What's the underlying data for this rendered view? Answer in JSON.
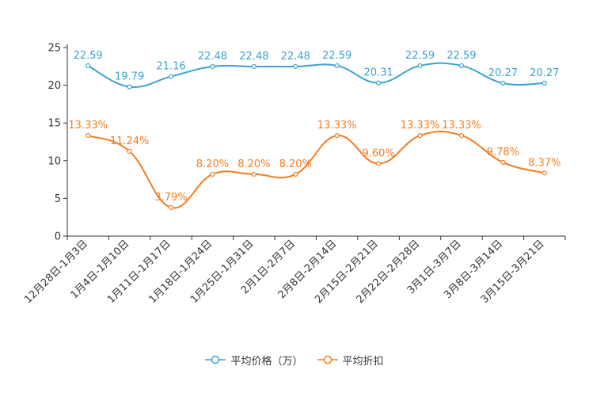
{
  "chart_data": {
    "type": "line",
    "categories": [
      "12月28日-1月3日",
      "1月4日-1月10日",
      "1月11日-1月17日",
      "1月18日-1月24日",
      "1月25日-1月31日",
      "2月1日-2月7日",
      "2月8日-2月14日",
      "2月15日-2月21日",
      "2月22日-2月28日",
      "3月1日-3月7日",
      "3月8日-3月14日",
      "3月15日-3月21日"
    ],
    "ylim": [
      0,
      25
    ],
    "yticks": [
      0,
      5,
      10,
      15,
      20,
      25
    ],
    "series": [
      {
        "name": "平均价格（万）",
        "color": "#3ba2d1",
        "values": [
          22.59,
          19.79,
          21.16,
          22.48,
          22.48,
          22.48,
          22.59,
          20.31,
          22.59,
          22.59,
          20.27,
          20.27
        ],
        "labels": [
          "22.59",
          "19.79",
          "21.16",
          "22.48",
          "22.48",
          "22.48",
          "22.59",
          "20.31",
          "22.59",
          "22.59",
          "20.27",
          "20.27"
        ]
      },
      {
        "name": "平均折扣",
        "color": "#f57c1f",
        "values": [
          13.33,
          11.24,
          3.79,
          8.2,
          8.2,
          8.2,
          13.33,
          9.6,
          13.33,
          13.33,
          9.78,
          8.37
        ],
        "labels": [
          "13.33%",
          "11.24%",
          "3.79%",
          "8.20%",
          "8.20%",
          "8.20%",
          "13.33%",
          "9.60%",
          "13.33%",
          "13.33%",
          "9.78%",
          "8.37%"
        ]
      }
    ]
  }
}
